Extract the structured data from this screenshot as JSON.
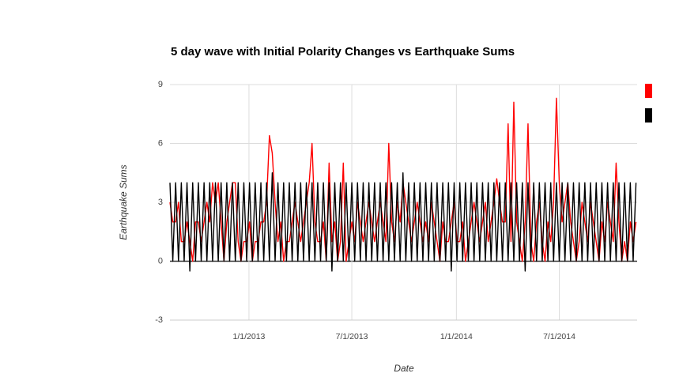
{
  "chart_data": {
    "type": "line",
    "title": "5 day wave with Initial Polarity Changes vs Earthquake Sums",
    "x_label": "Date",
    "y_label": "Earthquake Sums",
    "xlim": [
      "2012-08-15",
      "2014-11-15"
    ],
    "xticks": [
      {
        "value": "2013-01-01",
        "label": "1/1/2013"
      },
      {
        "value": "2013-07-01",
        "label": "7/1/2013"
      },
      {
        "value": "2014-01-01",
        "label": "1/1/2014"
      },
      {
        "value": "2014-07-01",
        "label": "7/1/2014"
      }
    ],
    "ylim": [
      -3,
      9
    ],
    "yticks": [
      -3,
      0,
      3,
      6,
      9
    ],
    "grid": true,
    "legend": "right",
    "x": [
      "2012-08-15",
      "2012-08-20",
      "2012-08-25",
      "2012-08-30",
      "2012-09-04",
      "2012-09-09",
      "2012-09-14",
      "2012-09-19",
      "2012-09-24",
      "2012-09-29",
      "2012-10-04",
      "2012-10-09",
      "2012-10-14",
      "2012-10-19",
      "2012-10-24",
      "2012-10-29",
      "2012-11-03",
      "2012-11-08",
      "2012-11-13",
      "2012-11-18",
      "2012-11-23",
      "2012-11-28",
      "2012-12-03",
      "2012-12-08",
      "2012-12-13",
      "2012-12-18",
      "2012-12-23",
      "2012-12-28",
      "2013-01-02",
      "2013-01-07",
      "2013-01-12",
      "2013-01-17",
      "2013-01-22",
      "2013-01-27",
      "2013-02-01",
      "2013-02-06",
      "2013-02-11",
      "2013-02-16",
      "2013-02-21",
      "2013-02-26",
      "2013-03-03",
      "2013-03-08",
      "2013-03-13",
      "2013-03-18",
      "2013-03-23",
      "2013-03-28",
      "2013-04-02",
      "2013-04-07",
      "2013-04-12",
      "2013-04-17",
      "2013-04-22",
      "2013-04-27",
      "2013-05-02",
      "2013-05-07",
      "2013-05-12",
      "2013-05-17",
      "2013-05-22",
      "2013-05-27",
      "2013-06-01",
      "2013-06-06",
      "2013-06-11",
      "2013-06-16",
      "2013-06-21",
      "2013-06-26",
      "2013-07-01",
      "2013-07-06",
      "2013-07-11",
      "2013-07-16",
      "2013-07-21",
      "2013-07-26",
      "2013-07-31",
      "2013-08-05",
      "2013-08-10",
      "2013-08-15",
      "2013-08-20",
      "2013-08-25",
      "2013-08-30",
      "2013-09-04",
      "2013-09-09",
      "2013-09-14",
      "2013-09-19",
      "2013-09-24",
      "2013-09-29",
      "2013-10-04",
      "2013-10-09",
      "2013-10-14",
      "2013-10-19",
      "2013-10-24",
      "2013-10-29",
      "2013-11-03",
      "2013-11-08",
      "2013-11-13",
      "2013-11-18",
      "2013-11-23",
      "2013-11-28",
      "2013-12-03",
      "2013-12-08",
      "2013-12-13",
      "2013-12-18",
      "2013-12-23",
      "2013-12-28",
      "2014-01-02",
      "2014-01-07",
      "2014-01-12",
      "2014-01-17",
      "2014-01-22",
      "2014-01-27",
      "2014-02-01",
      "2014-02-06",
      "2014-02-11",
      "2014-02-16",
      "2014-02-21",
      "2014-02-26",
      "2014-03-03",
      "2014-03-08",
      "2014-03-13",
      "2014-03-18",
      "2014-03-23",
      "2014-03-28",
      "2014-04-02",
      "2014-04-07",
      "2014-04-12",
      "2014-04-17",
      "2014-04-22",
      "2014-04-27",
      "2014-05-02",
      "2014-05-07",
      "2014-05-12",
      "2014-05-17",
      "2014-05-22",
      "2014-05-27",
      "2014-06-01",
      "2014-06-06",
      "2014-06-11",
      "2014-06-16",
      "2014-06-21",
      "2014-06-26",
      "2014-07-01",
      "2014-07-06",
      "2014-07-11",
      "2014-07-16",
      "2014-07-21",
      "2014-07-26",
      "2014-07-31",
      "2014-08-05",
      "2014-08-10",
      "2014-08-15",
      "2014-08-20",
      "2014-08-25",
      "2014-08-30",
      "2014-09-04",
      "2014-09-09",
      "2014-09-14",
      "2014-09-19",
      "2014-09-24",
      "2014-09-29",
      "2014-10-04",
      "2014-10-09",
      "2014-10-14",
      "2014-10-19",
      "2014-10-24",
      "2014-10-29",
      "2014-11-03",
      "2014-11-08",
      "2014-11-13"
    ],
    "series": [
      {
        "color": "#ff0000",
        "values": [
          3,
          2,
          2,
          3,
          1,
          1,
          2,
          1,
          0,
          2,
          2,
          1,
          2,
          3,
          2,
          4,
          3,
          4,
          2,
          0,
          2,
          3,
          4,
          4,
          1,
          0,
          1,
          1,
          2,
          0,
          1,
          1,
          2,
          2,
          3,
          6.4,
          5.5,
          3,
          1,
          2,
          0,
          1,
          1,
          2,
          3,
          2,
          1,
          2,
          3,
          4,
          6,
          2,
          1,
          1,
          2,
          0,
          5,
          1,
          2,
          0,
          1,
          5,
          0,
          1,
          2,
          1,
          3,
          2,
          1,
          2,
          3,
          2,
          1,
          2,
          3,
          2,
          1,
          6,
          2,
          1,
          3,
          2,
          4,
          3,
          2,
          1,
          2,
          3,
          2,
          1,
          2,
          1,
          3,
          2,
          1,
          0,
          2,
          1,
          1,
          2,
          3,
          1,
          1,
          2,
          0,
          1,
          2,
          3,
          2,
          1,
          2,
          3,
          1,
          2,
          3,
          4.2,
          3,
          2,
          2,
          7,
          1,
          8.1,
          2,
          1,
          0,
          2,
          7,
          1,
          0,
          2,
          3,
          1,
          0,
          2,
          1,
          3,
          8.3,
          4,
          2,
          3,
          4,
          2,
          1,
          0,
          1,
          3,
          2,
          1,
          3,
          2,
          1,
          0,
          2,
          1,
          3,
          2,
          1,
          5,
          2,
          0,
          1,
          0,
          2,
          1,
          2
        ]
      },
      {
        "color": "#000000",
        "values": [
          4,
          0,
          4,
          0,
          4,
          0,
          4,
          -0.5,
          4,
          0,
          4,
          0,
          4,
          0,
          4,
          0,
          4,
          0,
          4,
          0,
          4,
          0,
          4,
          0,
          4,
          0,
          4,
          0,
          4,
          0,
          4,
          0,
          4,
          0,
          4,
          0,
          4.5,
          0,
          4,
          0,
          4,
          0,
          4,
          0,
          4,
          0,
          4,
          0,
          4,
          0,
          4,
          0,
          4,
          0,
          4,
          0,
          4,
          -0.5,
          4,
          0,
          4,
          0,
          4,
          0,
          4,
          0,
          4,
          0,
          4,
          0,
          4,
          0,
          4,
          0,
          4,
          0,
          4,
          0,
          4,
          0,
          4,
          0,
          4.5,
          0,
          4,
          0,
          4,
          0,
          4,
          0,
          4,
          0,
          4,
          0,
          4,
          0,
          4,
          0,
          4,
          -0.5,
          4,
          0,
          4,
          0,
          4,
          0,
          4,
          0,
          4,
          0,
          4,
          0,
          4,
          0,
          4,
          0,
          4,
          0,
          4,
          0,
          4,
          0,
          4,
          0,
          4,
          -0.5,
          4,
          0,
          4,
          0,
          4,
          0,
          4,
          0,
          4,
          0,
          4,
          0,
          4,
          0,
          4,
          0,
          4,
          0,
          4,
          0,
          4,
          0,
          4,
          0,
          4,
          0,
          4,
          0,
          4,
          0,
          4,
          0,
          4,
          0,
          4,
          0,
          4,
          0,
          4
        ]
      }
    ]
  }
}
